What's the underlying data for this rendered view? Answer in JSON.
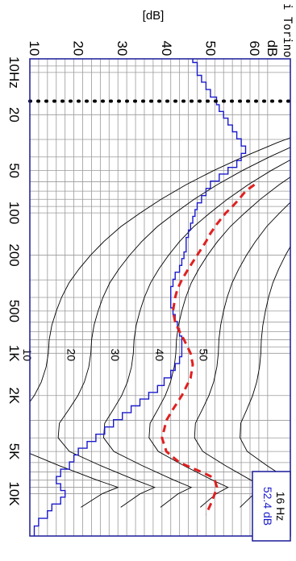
{
  "chart_data": {
    "type": "line",
    "orientation": "rotated 90 degrees clockwise (frequency runs top to bottom, level runs left to right)",
    "title": "",
    "xlabel": "",
    "ylabel": "[dB]",
    "x_scale": "log",
    "x_ticks": [
      10,
      20,
      50,
      100,
      200,
      500,
      1000,
      2000,
      5000,
      10000
    ],
    "x_tick_labels": [
      "10Hz",
      "20",
      "50",
      "100",
      "200",
      "500",
      "1K",
      "2K",
      "5K",
      "10K"
    ],
    "xlim": [
      8,
      20000
    ],
    "y_ticks": [
      10,
      20,
      30,
      40,
      50,
      60
    ],
    "y_tick_labels": [
      "10",
      "20",
      "30",
      "40",
      "50",
      "60"
    ],
    "ylim": [
      10,
      60
    ],
    "y_unit_label": "dB",
    "grid": true,
    "cursor": {
      "frequency_label": "16 Hz",
      "level_label": "52.4 dB",
      "x": 16
    },
    "header_text": "i Torino",
    "series": [
      {
        "style": "step",
        "color": "#1a1acc",
        "x": [
          8,
          9,
          10,
          11,
          12.5,
          14,
          16,
          18,
          20,
          22.4,
          25,
          28,
          31.5,
          35.5,
          40,
          45,
          50,
          56,
          63,
          71,
          80,
          90,
          100,
          112,
          125,
          140,
          160,
          180,
          200,
          224,
          250,
          280,
          315,
          355,
          400,
          450,
          500,
          560,
          630,
          710,
          800,
          900,
          1000,
          1120,
          1250,
          1400,
          1600,
          1800,
          2000,
          2240,
          2500,
          2800,
          3150,
          3550,
          4000,
          4500,
          5000,
          5600,
          6300,
          7100,
          8000,
          9000,
          10000,
          11200,
          12500,
          14000,
          16000,
          18000
        ],
        "values": [
          47,
          48,
          48,
          49,
          50,
          51,
          52.4,
          53,
          54,
          55,
          56,
          57,
          58,
          59,
          58,
          57,
          55,
          53,
          51,
          50,
          49,
          48,
          47.5,
          47,
          46.5,
          46,
          45.5,
          45.5,
          45,
          44.5,
          44,
          43,
          42.5,
          42,
          42,
          42,
          42.5,
          43,
          43.5,
          44,
          44.5,
          44.5,
          44.5,
          44,
          43,
          42,
          40.5,
          39,
          37,
          35,
          33,
          31,
          29,
          27,
          25,
          23,
          21,
          20,
          19,
          17,
          16,
          17,
          18,
          17,
          15,
          14,
          12,
          11
        ]
      },
      {
        "style": "dashed",
        "color": "#e02020",
        "x": [
          63,
          70,
          80,
          90,
          100,
          120,
          140,
          160,
          200,
          250,
          300,
          350,
          400,
          500,
          600,
          700,
          800,
          1000,
          1200,
          1500,
          2000,
          2500,
          3000,
          3500,
          4000,
          5000,
          6000,
          7000,
          7500,
          8000,
          9000,
          10000,
          12000,
          14000
        ],
        "values": [
          61,
          59,
          57.5,
          56,
          54.5,
          52.5,
          51,
          50,
          48,
          46,
          44.5,
          43.5,
          43,
          42.5,
          43,
          44,
          45,
          46.5,
          47,
          46.5,
          44.5,
          42.5,
          41,
          40.5,
          40,
          41,
          44,
          49,
          51,
          52,
          52.5,
          52,
          51,
          50
        ]
      }
    ],
    "reference_curves": {
      "color": "#000000",
      "labels": [
        "10",
        "20",
        "30",
        "40",
        "50"
      ],
      "phon": [
        10,
        20,
        30,
        40,
        50,
        60
      ]
    }
  }
}
